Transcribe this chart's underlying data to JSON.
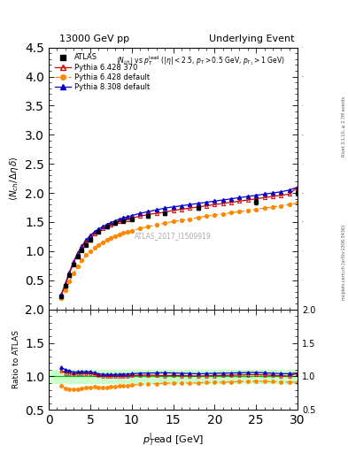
{
  "title_left": "13000 GeV pp",
  "title_right": "Underlying Event",
  "right_label": "mcplots.cern.ch [arXiv:1306.3436]",
  "rivet_label": "Rivet 3.1.10, ≥ 2.7M events",
  "plot_label": "ATLAS_2017_I1509919",
  "ratio_ylabel": "Ratio to ATLAS",
  "xlim": [
    0,
    30
  ],
  "ylim_main": [
    0,
    4.5
  ],
  "ylim_ratio": [
    0.5,
    2.0
  ],
  "yticks_main": [
    0.5,
    1.0,
    1.5,
    2.0,
    2.5,
    3.0,
    3.5,
    4.0,
    4.5
  ],
  "yticks_ratio": [
    0.5,
    1.0,
    1.5,
    2.0
  ],
  "atlas_x": [
    1.5,
    2.0,
    2.5,
    3.0,
    3.5,
    4.0,
    4.5,
    5.0,
    6.0,
    7.0,
    8.0,
    9.0,
    10.0,
    12.0,
    14.0,
    18.0,
    25.0,
    30.0
  ],
  "atlas_y": [
    0.22,
    0.4,
    0.59,
    0.77,
    0.91,
    1.02,
    1.11,
    1.19,
    1.33,
    1.42,
    1.48,
    1.52,
    1.55,
    1.6,
    1.65,
    1.75,
    1.85,
    2.0
  ],
  "atlas_yerr": [
    0.02,
    0.02,
    0.02,
    0.02,
    0.02,
    0.02,
    0.02,
    0.02,
    0.02,
    0.02,
    0.02,
    0.02,
    0.02,
    0.03,
    0.03,
    0.03,
    0.04,
    0.05
  ],
  "py6_370_x": [
    1.5,
    2.0,
    2.5,
    3.0,
    3.5,
    4.0,
    4.5,
    5.0,
    5.5,
    6.0,
    6.5,
    7.0,
    7.5,
    8.0,
    8.5,
    9.0,
    9.5,
    10.0,
    11.0,
    12.0,
    13.0,
    14.0,
    15.0,
    16.0,
    17.0,
    18.0,
    19.0,
    20.0,
    21.0,
    22.0,
    23.0,
    24.0,
    25.0,
    26.0,
    27.0,
    28.0,
    29.0,
    30.0
  ],
  "py6_370_y": [
    0.24,
    0.42,
    0.62,
    0.8,
    0.95,
    1.07,
    1.16,
    1.24,
    1.3,
    1.35,
    1.39,
    1.43,
    1.46,
    1.49,
    1.51,
    1.53,
    1.55,
    1.57,
    1.6,
    1.63,
    1.65,
    1.67,
    1.7,
    1.72,
    1.74,
    1.76,
    1.78,
    1.8,
    1.82,
    1.84,
    1.86,
    1.88,
    1.9,
    1.92,
    1.94,
    1.96,
    1.98,
    2.1
  ],
  "py6_370_color": "#cc0000",
  "py6_def_x": [
    1.5,
    2.0,
    2.5,
    3.0,
    3.5,
    4.0,
    4.5,
    5.0,
    5.5,
    6.0,
    6.5,
    7.0,
    7.5,
    8.0,
    8.5,
    9.0,
    9.5,
    10.0,
    11.0,
    12.0,
    13.0,
    14.0,
    15.0,
    16.0,
    17.0,
    18.0,
    19.0,
    20.0,
    21.0,
    22.0,
    23.0,
    24.0,
    25.0,
    26.0,
    27.0,
    28.0,
    29.0,
    30.0
  ],
  "py6_def_y": [
    0.19,
    0.33,
    0.48,
    0.62,
    0.74,
    0.84,
    0.93,
    1.0,
    1.06,
    1.11,
    1.15,
    1.19,
    1.23,
    1.26,
    1.29,
    1.31,
    1.33,
    1.35,
    1.39,
    1.42,
    1.45,
    1.48,
    1.51,
    1.53,
    1.55,
    1.58,
    1.6,
    1.62,
    1.64,
    1.66,
    1.68,
    1.7,
    1.72,
    1.74,
    1.76,
    1.78,
    1.8,
    1.83
  ],
  "py6_def_color": "#ff8800",
  "py8_def_x": [
    1.5,
    2.0,
    2.5,
    3.0,
    3.5,
    4.0,
    4.5,
    5.0,
    5.5,
    6.0,
    6.5,
    7.0,
    7.5,
    8.0,
    8.5,
    9.0,
    9.5,
    10.0,
    11.0,
    12.0,
    13.0,
    14.0,
    15.0,
    16.0,
    17.0,
    18.0,
    19.0,
    20.0,
    21.0,
    22.0,
    23.0,
    24.0,
    25.0,
    26.0,
    27.0,
    28.0,
    29.0,
    30.0
  ],
  "py8_def_y": [
    0.25,
    0.44,
    0.64,
    0.82,
    0.97,
    1.09,
    1.19,
    1.27,
    1.33,
    1.38,
    1.42,
    1.46,
    1.49,
    1.52,
    1.55,
    1.57,
    1.59,
    1.61,
    1.65,
    1.68,
    1.71,
    1.74,
    1.76,
    1.78,
    1.8,
    1.82,
    1.84,
    1.86,
    1.88,
    1.9,
    1.92,
    1.94,
    1.96,
    1.98,
    2.0,
    2.02,
    2.05,
    2.1
  ],
  "py8_def_color": "#0000cc",
  "atlas_color": "#000000",
  "band_color": "#ccffcc",
  "line_color": "#00bb00"
}
